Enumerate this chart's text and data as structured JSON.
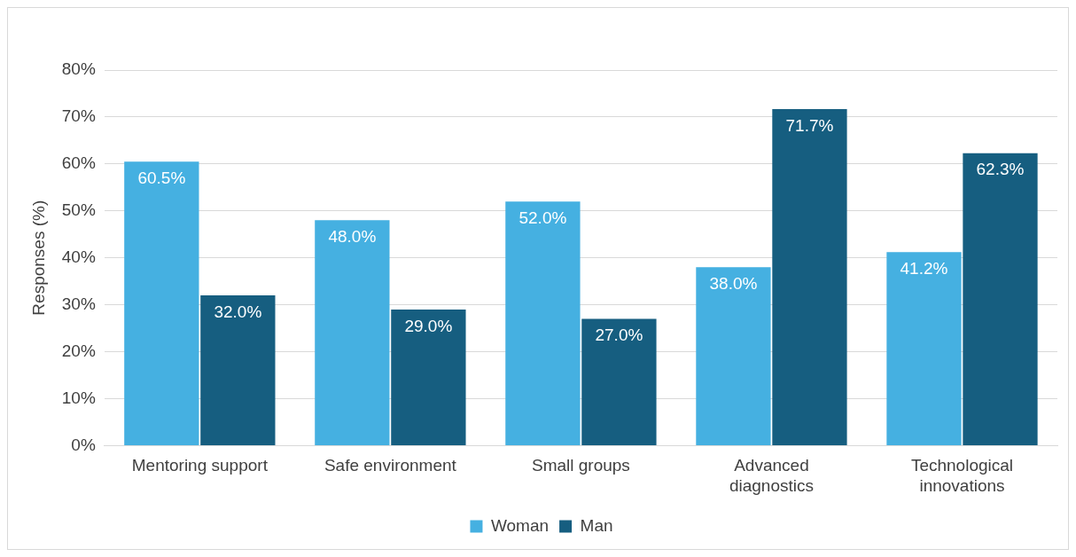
{
  "chart_data": {
    "type": "bar",
    "ylabel": "Responses (%)",
    "categories": [
      "Mentoring support",
      "Safe environment",
      "Small groups",
      "Advanced diagnostics",
      "Technological innovations"
    ],
    "series": [
      {
        "name": "Woman",
        "color": "#45b0e1",
        "values": [
          60.5,
          48.0,
          52.0,
          38.0,
          41.2
        ],
        "value_labels": [
          "60.5%",
          "48.0%",
          "52.0%",
          "38.0%",
          "41.2%"
        ]
      },
      {
        "name": "Man",
        "color": "#165e80",
        "values": [
          32.0,
          29.0,
          27.0,
          71.7,
          62.3
        ],
        "value_labels": [
          "32.0%",
          "29.0%",
          "27.0%",
          "71.7%",
          "62.3%"
        ]
      }
    ],
    "ylim": [
      0,
      80
    ],
    "yticks": [
      {
        "value": 0,
        "label": "0%"
      },
      {
        "value": 10,
        "label": "10%"
      },
      {
        "value": 20,
        "label": "20%"
      },
      {
        "value": 30,
        "label": "30%"
      },
      {
        "value": 40,
        "label": "40%"
      },
      {
        "value": 50,
        "label": "50%"
      },
      {
        "value": 60,
        "label": "60%"
      },
      {
        "value": 70,
        "label": "70%"
      },
      {
        "value": 80,
        "label": "80%"
      }
    ],
    "grid": "y",
    "legend": "bottom"
  }
}
